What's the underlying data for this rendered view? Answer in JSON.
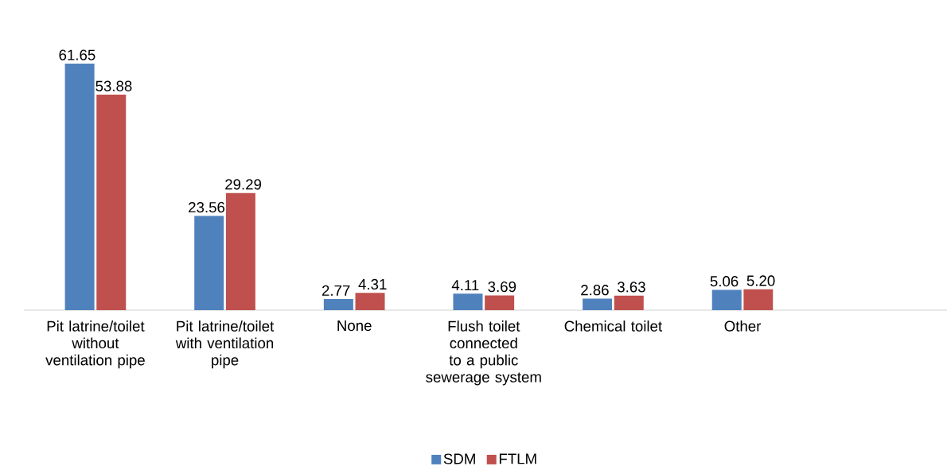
{
  "chart_data": {
    "type": "bar",
    "categories": [
      "Pit latrine/toilet without ventilation pipe",
      "Pit latrine/toilet with ventilation pipe",
      "None",
      "Flush toilet connected to a public sewerage system",
      "Chemical toilet",
      "Other"
    ],
    "series": [
      {
        "name": "SDM",
        "color": "#4f81bd",
        "values": [
          61.65,
          23.56,
          2.77,
          4.11,
          2.86,
          5.06
        ],
        "value_labels": [
          "61.65",
          "23.56",
          "2.77",
          "4.11",
          "2.86",
          "5.06"
        ]
      },
      {
        "name": "FTLM",
        "color": "#c0504d",
        "values": [
          53.88,
          29.29,
          4.31,
          3.69,
          3.63,
          5.2
        ],
        "value_labels": [
          "53.88",
          "29.29",
          "4.31",
          "3.69",
          "3.63",
          "5.20"
        ]
      }
    ],
    "grid": false,
    "legend": "bottom"
  }
}
